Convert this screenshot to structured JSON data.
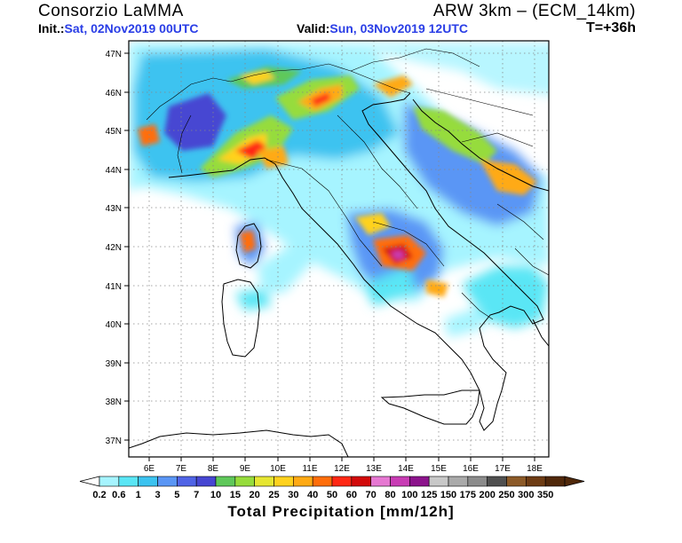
{
  "header": {
    "title_left": "Consorzio LaMMA",
    "title_right": "ARW 3km – (ECM_14km)",
    "init_label": "Init.:",
    "init_value": "Sat, 02Nov2019 00UTC",
    "valid_label": "Valid:",
    "valid_value": "Sun, 03Nov2019 12UTC",
    "forecast_step": "T=+36h"
  },
  "map": {
    "lat_labels": [
      "47N",
      "46N",
      "45N",
      "44N",
      "43N",
      "42N",
      "41N",
      "40N",
      "39N",
      "38N",
      "37N"
    ],
    "lon_labels": [
      "6E",
      "7E",
      "8E",
      "9E",
      "10E",
      "11E",
      "12E",
      "13E",
      "14E",
      "15E",
      "16E",
      "17E",
      "18E"
    ],
    "grid": "dotted"
  },
  "colorbar": {
    "title": "Total Precipitation [mm/12h]",
    "labels": [
      "0.2",
      "0.6",
      "1",
      "3",
      "5",
      "7",
      "10",
      "15",
      "20",
      "25",
      "30",
      "40",
      "50",
      "60",
      "70",
      "80",
      "100",
      "125",
      "150",
      "175",
      "200",
      "250",
      "300",
      "350"
    ],
    "colors": [
      "#a6f4ff",
      "#5ae6f5",
      "#3cc3f0",
      "#5a96f5",
      "#5064e6",
      "#4646d2",
      "#5fc85a",
      "#96dc3c",
      "#e6e632",
      "#ffd21e",
      "#ffaa14",
      "#ff6e0a",
      "#ff2814",
      "#d20a0a",
      "#e678d2",
      "#c83cb4",
      "#8c148c",
      "#c8c8c8",
      "#aaaaaa",
      "#8c8c8c",
      "#505050",
      "#8c5a28",
      "#6e3c14",
      "#50280a"
    ],
    "under_color": "#ffffff",
    "over_color": "#50280a"
  }
}
